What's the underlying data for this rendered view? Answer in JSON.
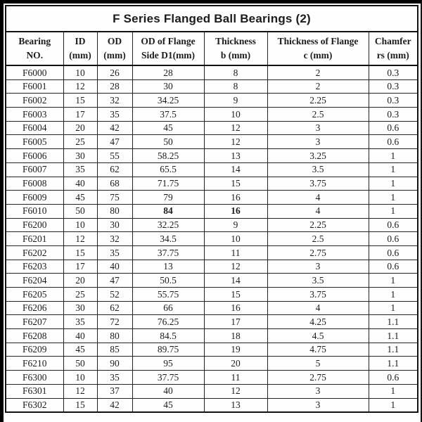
{
  "title": "F Series Flanged Ball Bearings (2)",
  "colors": {
    "background": "#ffffff",
    "text": "#1c1c1c",
    "border": "#111111"
  },
  "table": {
    "columns": [
      {
        "line1": "Bearing",
        "line2": "NO."
      },
      {
        "line1": "ID",
        "line2": "(mm)"
      },
      {
        "line1": "OD",
        "line2": "(mm)"
      },
      {
        "line1": "OD of Flange",
        "line2": "Side D1(mm)"
      },
      {
        "line1": "Thickness",
        "line2": "b (mm)"
      },
      {
        "line1": "Thickness of Flange",
        "line2": "c (mm)"
      },
      {
        "line1": "Chamfer",
        "line2": "rs (mm)"
      }
    ],
    "rows": [
      [
        "F6000",
        "10",
        "26",
        "28",
        "8",
        "2",
        "0.3"
      ],
      [
        "F6001",
        "12",
        "28",
        "30",
        "8",
        "2",
        "0.3"
      ],
      [
        "F6002",
        "15",
        "32",
        "34.25",
        "9",
        "2.25",
        "0.3"
      ],
      [
        "F6003",
        "17",
        "35",
        "37.5",
        "10",
        "2.5",
        "0.3"
      ],
      [
        "F6004",
        "20",
        "42",
        "45",
        "12",
        "3",
        "0.6"
      ],
      [
        "F6005",
        "25",
        "47",
        "50",
        "12",
        "3",
        "0.6"
      ],
      [
        "F6006",
        "30",
        "55",
        "58.25",
        "13",
        "3.25",
        "1"
      ],
      [
        "F6007",
        "35",
        "62",
        "65.5",
        "14",
        "3.5",
        "1"
      ],
      [
        "F6008",
        "40",
        "68",
        "71.75",
        "15",
        "3.75",
        "1"
      ],
      [
        "F6009",
        "45",
        "75",
        "79",
        "16",
        "4",
        "1"
      ],
      [
        "F6010",
        "50",
        "80",
        "84",
        "16",
        "4",
        "1"
      ],
      [
        "F6200",
        "10",
        "30",
        "32.25",
        "9",
        "2.25",
        "0.6"
      ],
      [
        "F6201",
        "12",
        "32",
        "34.5",
        "10",
        "2.5",
        "0.6"
      ],
      [
        "F6202",
        "15",
        "35",
        "37.75",
        "11",
        "2.75",
        "0.6"
      ],
      [
        "F6203",
        "17",
        "40",
        "13",
        "12",
        "3",
        "0.6"
      ],
      [
        "F6204",
        "20",
        "47",
        "50.5",
        "14",
        "3.5",
        "1"
      ],
      [
        "F6205",
        "25",
        "52",
        "55.75",
        "15",
        "3.75",
        "1"
      ],
      [
        "F6206",
        "30",
        "62",
        "66",
        "16",
        "4",
        "1"
      ],
      [
        "F6207",
        "35",
        "72",
        "76.25",
        "17",
        "4.25",
        "1.1"
      ],
      [
        "F6208",
        "40",
        "80",
        "84.5",
        "18",
        "4.5",
        "1.1"
      ],
      [
        "F6209",
        "45",
        "85",
        "89.75",
        "19",
        "4.75",
        "1.1"
      ],
      [
        "F6210",
        "50",
        "90",
        "95",
        "20",
        "5",
        "1.1"
      ],
      [
        "F6300",
        "10",
        "35",
        "37.75",
        "11",
        "2.75",
        "0.6"
      ],
      [
        "F6301",
        "12",
        "37",
        "40",
        "12",
        "3",
        "1"
      ],
      [
        "F6302",
        "15",
        "42",
        "45",
        "13",
        "3",
        "1"
      ]
    ],
    "bold_cells": [
      [
        10,
        3
      ],
      [
        10,
        4
      ]
    ]
  }
}
